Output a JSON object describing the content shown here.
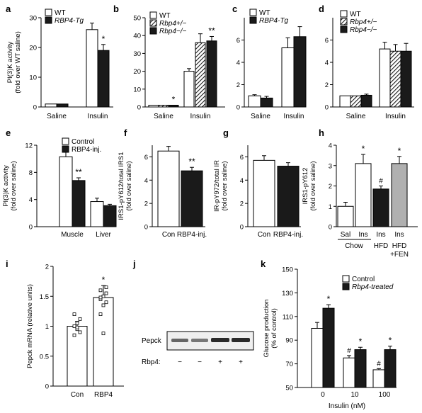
{
  "colors": {
    "filled": "#1a1a1a",
    "open": "#ffffff",
    "grey": "#b0b0b0",
    "hatch": "#1a1a1a"
  },
  "panel_labels": {
    "a": "a",
    "b": "b",
    "c": "c",
    "d": "d",
    "e": "e",
    "f": "f",
    "g": "g",
    "h": "h",
    "i": "i",
    "j": "j",
    "k": "k"
  },
  "panel_j": {
    "row_label": "Pepck",
    "treat_label": "Rbp4:",
    "lanes": [
      "−",
      "−",
      "+",
      "+"
    ]
  },
  "chart_data": [
    {
      "id": "a",
      "type": "bar",
      "ylabel": [
        "PI(3)K activity",
        "(fold over WT saline)"
      ],
      "ylim": [
        0,
        30
      ],
      "yticks": [
        0,
        10,
        20,
        30
      ],
      "categories": [
        "Saline",
        "Insulin"
      ],
      "series": [
        {
          "name": "WT",
          "style": "open",
          "values": [
            1.0,
            26.0
          ],
          "err": [
            0,
            2.2
          ]
        },
        {
          "name": "RBP4-Tg",
          "style": "filled",
          "values": [
            1.0,
            19.0
          ],
          "err": [
            0,
            2.0
          ]
        }
      ],
      "annotations": [
        "",
        "",
        "",
        "*"
      ],
      "legend": "top-left"
    },
    {
      "id": "b",
      "type": "bar",
      "ylabel": [],
      "ylim": [
        0,
        50
      ],
      "yticks": [
        0,
        10,
        20,
        30,
        40,
        50
      ],
      "categories": [
        "Saline",
        "Insulin"
      ],
      "series": [
        {
          "name": "WT",
          "style": "open",
          "values": [
            1.0,
            20.0
          ],
          "err": [
            0,
            1.5
          ]
        },
        {
          "name": "Rbp4+/−",
          "style": "hatch",
          "values": [
            1.0,
            36.0
          ],
          "err": [
            0,
            5.0
          ]
        },
        {
          "name": "Rbp4−/−",
          "style": "filled",
          "values": [
            1.0,
            37.0
          ],
          "err": [
            0,
            2.5
          ]
        }
      ],
      "annotations": [
        "",
        "",
        "",
        "",
        "*",
        "**"
      ],
      "legend": "top-left"
    },
    {
      "id": "c",
      "type": "bar",
      "ylabel": [],
      "ylim": [
        0,
        8
      ],
      "yticks": [
        0,
        2,
        4,
        6
      ],
      "categories": [
        "Saline",
        "Insulin"
      ],
      "series": [
        {
          "name": "WT",
          "style": "open",
          "values": [
            1.0,
            5.3
          ],
          "err": [
            0.1,
            0.9
          ]
        },
        {
          "name": "RBP4-Tg",
          "style": "filled",
          "values": [
            0.8,
            6.3
          ],
          "err": [
            0.15,
            0.9
          ]
        }
      ],
      "annotations": [
        "",
        "",
        "",
        ""
      ],
      "legend": "top-left"
    },
    {
      "id": "d",
      "type": "bar",
      "ylabel": [],
      "ylim": [
        0,
        8
      ],
      "yticks": [
        0,
        2,
        4,
        6
      ],
      "categories": [
        "Saline",
        "Insulin"
      ],
      "series": [
        {
          "name": "WT",
          "style": "open",
          "values": [
            1.0,
            5.2
          ],
          "err": [
            0,
            0.6
          ]
        },
        {
          "name": "Rbp4+/−",
          "style": "hatch",
          "values": [
            1.0,
            5.0
          ],
          "err": [
            0,
            0.6
          ]
        },
        {
          "name": "Rbp4−/−",
          "style": "filled",
          "values": [
            1.05,
            5.0
          ],
          "err": [
            0.1,
            0.7
          ]
        }
      ],
      "annotations": [
        "",
        "",
        "",
        "",
        "",
        ""
      ],
      "legend": "top-left"
    },
    {
      "id": "e",
      "type": "bar",
      "ylabel": [
        "PI(3)K activity",
        "(fold over saline)"
      ],
      "ylim": [
        0,
        12
      ],
      "yticks": [
        0,
        4,
        8,
        12
      ],
      "categories": [
        "Muscle",
        "Liver"
      ],
      "series": [
        {
          "name": "Control",
          "style": "open",
          "values": [
            10.3,
            3.7
          ],
          "err": [
            1.2,
            0.5
          ]
        },
        {
          "name": "RBP4-inj.",
          "style": "filled",
          "values": [
            6.8,
            3.1
          ],
          "err": [
            0.4,
            0.2
          ]
        }
      ],
      "annotations": [
        "",
        "",
        "**",
        ""
      ],
      "legend": "top-right"
    },
    {
      "id": "f",
      "type": "bar",
      "ylabel": [
        "IRS1-pY612/total IRS1",
        "(fold over saline)"
      ],
      "ylim": [
        0,
        7
      ],
      "yticks": [
        0,
        2,
        4,
        6
      ],
      "categories": [
        "Con",
        "RBP4-inj."
      ],
      "series": [
        {
          "name": "",
          "styles": [
            "open",
            "filled"
          ],
          "values": [
            6.5,
            4.8
          ],
          "err": [
            0.4,
            0.3
          ]
        }
      ],
      "annotations": [
        "",
        "**"
      ]
    },
    {
      "id": "g",
      "type": "bar",
      "ylabel": [
        "IR-pY972/total IR",
        "(fold over saline)"
      ],
      "ylim": [
        0,
        7
      ],
      "yticks": [
        0,
        2,
        4,
        6
      ],
      "categories": [
        "Con",
        "RBP4-inj."
      ],
      "series": [
        {
          "name": "",
          "styles": [
            "open",
            "filled"
          ],
          "values": [
            5.7,
            5.2
          ],
          "err": [
            0.4,
            0.3
          ]
        }
      ],
      "annotations": [
        "",
        ""
      ]
    },
    {
      "id": "h",
      "type": "bar",
      "ylabel": [
        "IRS1-pY612",
        "(fold over saline)"
      ],
      "ylim": [
        0,
        4
      ],
      "yticks": [
        0,
        1,
        2,
        3,
        4
      ],
      "categories": [
        "Sal",
        "Ins",
        "Ins",
        "Ins"
      ],
      "series": [
        {
          "name": "",
          "styles": [
            "open",
            "open",
            "filled",
            "grey"
          ],
          "values": [
            1.0,
            3.1,
            1.85,
            3.1
          ],
          "err": [
            0.2,
            0.45,
            0.15,
            0.35
          ]
        }
      ],
      "annotations": [
        "",
        "*",
        "#",
        "*"
      ],
      "groups": [
        {
          "label": "Chow"
        },
        {
          "label": "HFD"
        },
        {
          "label": "HFD +FEN"
        }
      ]
    },
    {
      "id": "i",
      "type": "bar",
      "ylabel": [
        "Pepck mRNA (relative units)"
      ],
      "ylim": [
        0,
        2.0
      ],
      "yticks": [
        0,
        0.5,
        1.0,
        1.5,
        2.0
      ],
      "categories": [
        "Con",
        "RBP4"
      ],
      "series": [
        {
          "name": "",
          "styles": [
            "open",
            "open"
          ],
          "values": [
            1.0,
            1.48
          ],
          "err": [
            0.08,
            0.2
          ]
        }
      ],
      "annotations": [
        "",
        "*"
      ],
      "points": [
        [
          1.0,
          0.95,
          0.9,
          0.85,
          1.05,
          1.12,
          1.2,
          0.98
        ],
        [
          1.45,
          1.5,
          1.55,
          1.6,
          1.35,
          1.4,
          1.2,
          0.88,
          1.65,
          1.48
        ]
      ]
    },
    {
      "id": "k",
      "type": "bar",
      "ylabel": [
        "Glucose production",
        "(% of control)"
      ],
      "xlabel": "Insulin (nM)",
      "ylim": [
        50,
        150
      ],
      "yticks": [
        50,
        70,
        90,
        110,
        130,
        150
      ],
      "categories": [
        "0",
        "10",
        "100"
      ],
      "series": [
        {
          "name": "Control",
          "style": "open",
          "values": [
            100,
            75,
            65
          ],
          "err": [
            5,
            2,
            1
          ]
        },
        {
          "name": "Rbp4-treated",
          "style": "filled",
          "values": [
            117,
            82,
            82
          ],
          "err": [
            3,
            2,
            3
          ]
        }
      ],
      "annotations": [
        "",
        "#",
        "#",
        "*",
        "*",
        "*"
      ],
      "legend": "top-right"
    }
  ]
}
